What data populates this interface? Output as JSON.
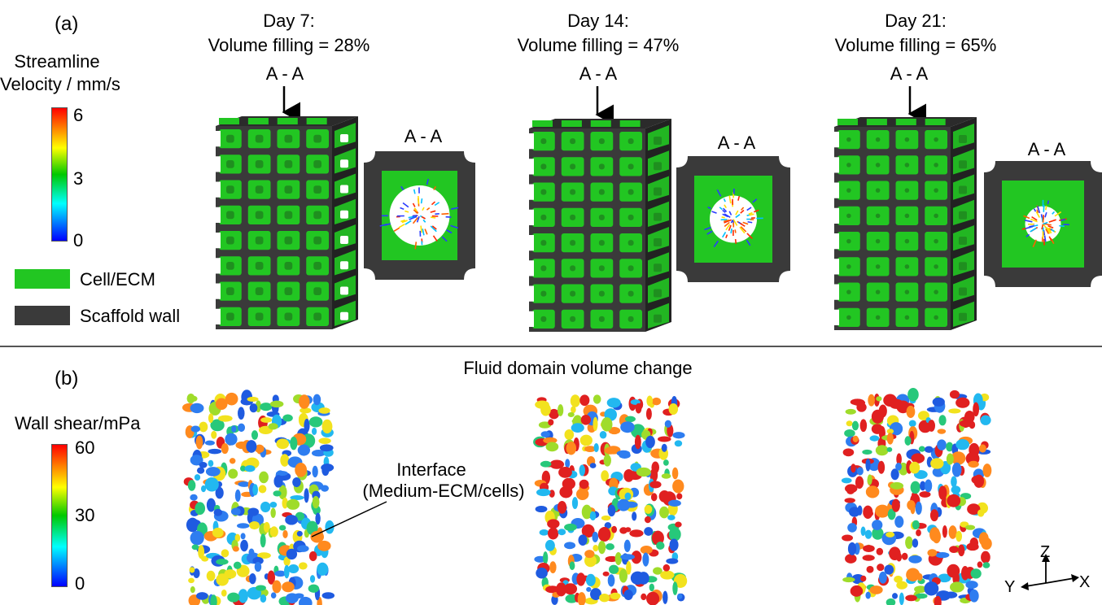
{
  "panel_a": {
    "label": "(a)",
    "colorbar": {
      "title_line1": "Streamline",
      "title_line2": "Velocity / mm/s",
      "ticks": [
        "6",
        "3",
        "0"
      ],
      "colors": [
        "#ff0000",
        "#ffff00",
        "#00c800",
        "#00ffff",
        "#0000ff"
      ]
    },
    "legend": [
      {
        "label": "Cell/ECM",
        "color": "#22c622"
      },
      {
        "label": "Scaffold wall",
        "color": "#3a3a3a"
      }
    ],
    "days": [
      {
        "title": "Day 7:",
        "subtitle": "Volume filling = 28%",
        "arrow_label": "A - A",
        "section_label": "A - A"
      },
      {
        "title": "Day 14:",
        "subtitle": "Volume filling = 47%",
        "arrow_label": "A - A",
        "section_label": "A - A"
      },
      {
        "title": "Day 21:",
        "subtitle": "Volume filling = 65%",
        "arrow_label": "A - A",
        "section_label": "A - A"
      }
    ]
  },
  "panel_b": {
    "label": "(b)",
    "title": "Fluid domain volume change",
    "colorbar": {
      "title": "Wall shear/mPa",
      "ticks": [
        "60",
        "30",
        "0"
      ]
    },
    "annotation_line1": "Interface",
    "annotation_line2": "(Medium-ECM/cells)",
    "axes": {
      "z": "Z",
      "y": "Y",
      "x": "X"
    }
  },
  "colors": {
    "ecm_green": "#22c622",
    "scaffold": "#3a3a3a",
    "shear_blue": "#1f5be0",
    "shear_red": "#e02020"
  }
}
